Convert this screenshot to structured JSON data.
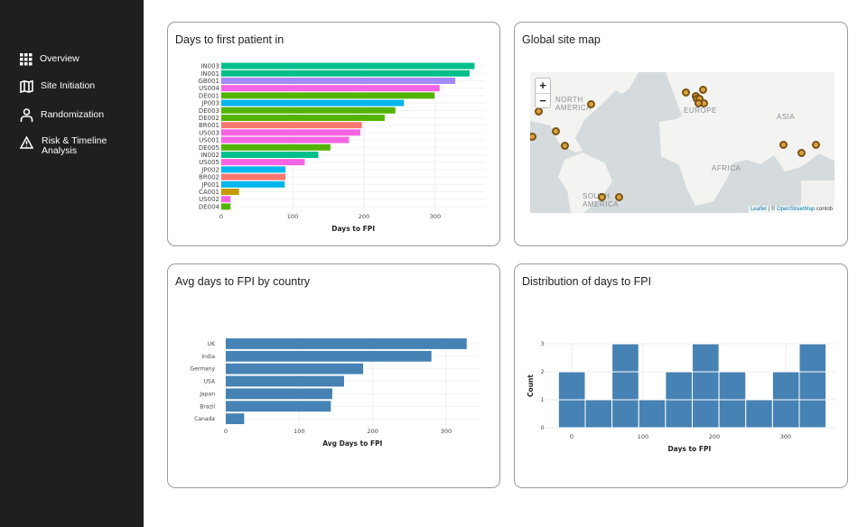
{
  "sidebar": {
    "items": [
      {
        "label": "Overview",
        "icon": "grid-icon"
      },
      {
        "label": "Site Initiation",
        "icon": "map-icon"
      },
      {
        "label": "Randomization",
        "icon": "user-icon"
      },
      {
        "label": "Risk & Timeline",
        "label2": "Analysis",
        "icon": "warning-icon"
      }
    ]
  },
  "cards": {
    "fpi": {
      "title": "Days to first patient in"
    },
    "map": {
      "title": "Global site map",
      "labels": [
        "NORTH AMERICA",
        "EUROPE",
        "ASIA",
        "AFRICA",
        "SOUTH AMERICA"
      ],
      "zoom_in": "+",
      "zoom_out": "−",
      "attr_leaflet": "Leaflet",
      "attr_sep": " | © ",
      "attr_osm": "OpenStreetMap",
      "attr_rest": " contrib"
    },
    "country": {
      "title": "Avg days to FPI by country"
    },
    "dist": {
      "title": "Distribution of days to FPI"
    }
  },
  "chart_data": [
    {
      "type": "bar",
      "orientation": "horizontal",
      "xlabel": "Days to FPI",
      "xlim": [
        0,
        370
      ],
      "xticks": [
        0,
        100,
        200,
        300
      ],
      "categories": [
        "IN003",
        "IN001",
        "GB001",
        "US004",
        "DE001",
        "JP003",
        "DE003",
        "DE002",
        "BR001",
        "US003",
        "US001",
        "DE005",
        "IN002",
        "US005",
        "JP002",
        "BR002",
        "JP001",
        "CA001",
        "US002",
        "DE004"
      ],
      "values": [
        355,
        348,
        328,
        306,
        299,
        256,
        244,
        229,
        197,
        195,
        179,
        153,
        136,
        117,
        90,
        90,
        89,
        25,
        13,
        13
      ],
      "colors": [
        "#00bf8c",
        "#00bf8c",
        "#a58afa",
        "#f564e3",
        "#53b400",
        "#00b6eb",
        "#53b400",
        "#53b400",
        "#f8766d",
        "#f564e3",
        "#f564e3",
        "#53b400",
        "#00bf8c",
        "#f564e3",
        "#00b6eb",
        "#f8766d",
        "#00b6eb",
        "#c49a00",
        "#f564e3",
        "#53b400"
      ]
    },
    {
      "type": "bar",
      "orientation": "horizontal",
      "xlabel": "Avg Days to FPI",
      "xlim": [
        0,
        345
      ],
      "xticks": [
        0,
        100,
        200,
        300
      ],
      "categories": [
        "UK",
        "India",
        "Germany",
        "USA",
        "Japan",
        "Brazil",
        "Canada"
      ],
      "values": [
        328,
        280,
        187,
        161,
        145,
        143,
        25
      ],
      "color": "#4682b4"
    },
    {
      "type": "bar",
      "subtype": "histogram",
      "xlabel": "Days to FPI",
      "ylabel": "Count",
      "xlim": [
        -40,
        370
      ],
      "ylim": [
        0,
        3
      ],
      "xticks": [
        0,
        100,
        200,
        300
      ],
      "yticks": [
        0,
        1,
        2,
        3
      ],
      "bin_start": -18.5,
      "bin_width": 37.5,
      "counts": [
        2,
        1,
        3,
        1,
        2,
        3,
        2,
        1,
        2,
        3
      ],
      "color": "#4682b4"
    }
  ]
}
